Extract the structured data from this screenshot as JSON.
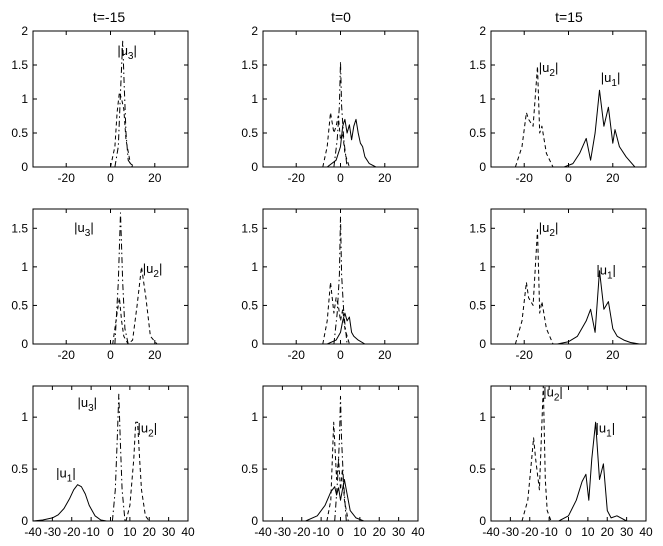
{
  "figure": {
    "column_titles": [
      "t=-15",
      "t=0",
      "t=15"
    ]
  },
  "chart_data": [
    {
      "type": "line",
      "row": 0,
      "col": 0,
      "title": "t=-15",
      "xlim": [
        -35,
        35
      ],
      "ylim": [
        0,
        2
      ],
      "xticks": [
        -20,
        0,
        20
      ],
      "yticks": [
        0,
        0.5,
        1,
        1.5,
        2
      ],
      "xtick_labels": [
        "-20",
        "0",
        "20"
      ],
      "ytick_labels": [
        "0",
        "0.5",
        "1",
        "1.5",
        "2"
      ],
      "series": [
        {
          "name": "|u1|",
          "style": "solid",
          "x": [
            -35,
            35
          ],
          "y": [
            0,
            0
          ]
        },
        {
          "name": "|u2|",
          "style": "dashed",
          "x": [
            0,
            2,
            3,
            4,
            5,
            6,
            7,
            9,
            11
          ],
          "y": [
            0,
            0.3,
            0.8,
            1.1,
            1.0,
            0.85,
            0.4,
            0.05,
            0
          ]
        },
        {
          "name": "|u3|",
          "style": "dashdot",
          "x": [
            2,
            3.5,
            4.5,
            5.5,
            6.2,
            7,
            8,
            10
          ],
          "y": [
            0,
            0.3,
            1.1,
            1.85,
            1.2,
            0.5,
            0.1,
            0
          ]
        }
      ],
      "annotations": [
        {
          "label": "|u",
          "sub": "3",
          "x": 7.5,
          "y": 1.65
        }
      ]
    },
    {
      "type": "line",
      "row": 0,
      "col": 1,
      "title": "t=0",
      "xlim": [
        -35,
        35
      ],
      "ylim": [
        0,
        2
      ],
      "xticks": [
        -20,
        0,
        20
      ],
      "yticks": [
        0,
        0.5,
        1,
        1.5,
        2
      ],
      "xtick_labels": [
        "-20",
        "0",
        "20"
      ],
      "ytick_labels": [
        "0",
        "0.5",
        "1",
        "1.5",
        "2"
      ],
      "series": [
        {
          "name": "|u1|",
          "style": "solid",
          "x": [
            -6,
            -2,
            0,
            1,
            2,
            3,
            4,
            5,
            6,
            7,
            8,
            9,
            10,
            11,
            13,
            16
          ],
          "y": [
            0,
            0.1,
            0.3,
            0.6,
            0.7,
            0.5,
            0.62,
            0.4,
            0.6,
            0.7,
            0.5,
            0.35,
            0.3,
            0.15,
            0.05,
            0
          ]
        },
        {
          "name": "|u2|",
          "style": "dashed",
          "x": [
            -8,
            -6,
            -4.5,
            -3,
            -2,
            -1,
            0,
            1,
            2,
            4
          ],
          "y": [
            0,
            0.3,
            0.8,
            0.5,
            0.6,
            0.75,
            0.4,
            0.5,
            0.2,
            0
          ]
        },
        {
          "name": "|u3|",
          "style": "dashdot",
          "x": [
            -3,
            -1.5,
            -0.5,
            0,
            0.5,
            1.5,
            3
          ],
          "y": [
            0,
            0.4,
            0.9,
            1.55,
            0.9,
            0.4,
            0
          ]
        }
      ],
      "annotations": []
    },
    {
      "type": "line",
      "row": 0,
      "col": 2,
      "title": "t=15",
      "xlim": [
        -35,
        35
      ],
      "ylim": [
        0,
        2
      ],
      "xticks": [
        -20,
        0,
        20
      ],
      "yticks": [
        0,
        0.5,
        1,
        1.5,
        2
      ],
      "xtick_labels": [
        "-20",
        "0",
        "20"
      ],
      "ytick_labels": [
        "0",
        "0.5",
        "1",
        "1.5",
        "2"
      ],
      "series": [
        {
          "name": "|u1|",
          "style": "solid",
          "x": [
            -2,
            2,
            5,
            8,
            10,
            12,
            14,
            16,
            18,
            20,
            21,
            23,
            26,
            30
          ],
          "y": [
            0,
            0.05,
            0.2,
            0.42,
            0.1,
            0.5,
            1.13,
            0.6,
            0.88,
            0.35,
            0.55,
            0.3,
            0.15,
            0
          ]
        },
        {
          "name": "|u2|",
          "style": "dashed",
          "x": [
            -24,
            -21,
            -19,
            -18,
            -16,
            -14,
            -13,
            -12,
            -10,
            -7
          ],
          "y": [
            0,
            0.3,
            0.8,
            0.7,
            0.6,
            1.48,
            0.5,
            0.6,
            0.2,
            0
          ]
        },
        {
          "name": "|u3|",
          "style": "dashdot",
          "x": [
            -35,
            35
          ],
          "y": [
            0,
            0
          ]
        }
      ],
      "annotations": [
        {
          "label": "|u",
          "sub": "2",
          "x": -9,
          "y": 1.4
        },
        {
          "label": "|u",
          "sub": "1",
          "x": 19,
          "y": 1.25
        }
      ]
    },
    {
      "type": "line",
      "row": 1,
      "col": 0,
      "title": "",
      "xlim": [
        -35,
        35
      ],
      "ylim": [
        0,
        1.75
      ],
      "xticks": [
        -20,
        0,
        20
      ],
      "yticks": [
        0,
        0.5,
        1,
        1.5
      ],
      "xtick_labels": [
        "-20",
        "0",
        "20"
      ],
      "ytick_labels": [
        "0",
        "0.5",
        "1",
        "1.5"
      ],
      "series": [
        {
          "name": "|u1|",
          "style": "solid",
          "x": [
            -35,
            35
          ],
          "y": [
            0,
            0
          ]
        },
        {
          "name": "|u2|",
          "style": "dashed",
          "x": [
            1,
            3,
            4,
            5,
            6,
            8,
            10,
            12,
            14,
            16,
            18,
            21
          ],
          "y": [
            0,
            0.4,
            0.6,
            0.3,
            0.1,
            0,
            0.05,
            0.5,
            1.0,
            0.6,
            0.1,
            0
          ]
        },
        {
          "name": "|u3|",
          "style": "dashdot",
          "x": [
            2,
            3.5,
            4.5,
            5.5,
            6.5,
            8
          ],
          "y": [
            0,
            0.8,
            1.7,
            0.8,
            0.2,
            0
          ]
        }
      ],
      "annotations": [
        {
          "label": "|u",
          "sub": "3",
          "x": -12,
          "y": 1.45
        },
        {
          "label": "|u",
          "sub": "2",
          "x": 19,
          "y": 0.92
        }
      ]
    },
    {
      "type": "line",
      "row": 1,
      "col": 1,
      "title": "",
      "xlim": [
        -35,
        35
      ],
      "ylim": [
        0,
        1.75
      ],
      "xticks": [
        -20,
        0,
        20
      ],
      "yticks": [
        0,
        0.5,
        1,
        1.5
      ],
      "xtick_labels": [
        "-20",
        "0",
        "20"
      ],
      "ytick_labels": [
        "0",
        "0.5",
        "1",
        "1.5"
      ],
      "series": [
        {
          "name": "|u1|",
          "style": "solid",
          "x": [
            -6,
            -2,
            0,
            1,
            2,
            3,
            4,
            5,
            6,
            8,
            11
          ],
          "y": [
            0,
            0.05,
            0.15,
            0.3,
            0.4,
            0.3,
            0.35,
            0.15,
            0.1,
            0.05,
            0
          ]
        },
        {
          "name": "|u2|",
          "style": "dashed",
          "x": [
            -8,
            -6,
            -4.5,
            -3,
            -2,
            -1,
            0,
            1,
            2,
            4
          ],
          "y": [
            0,
            0.3,
            0.8,
            0.4,
            0.6,
            0.5,
            0.3,
            0.45,
            0.2,
            0
          ]
        },
        {
          "name": "|u3|",
          "style": "dashdot",
          "x": [
            -3,
            -1.5,
            -0.5,
            0,
            0.5,
            1.5,
            3
          ],
          "y": [
            0,
            0.4,
            0.9,
            1.65,
            0.9,
            0.4,
            0
          ]
        }
      ],
      "annotations": []
    },
    {
      "type": "line",
      "row": 1,
      "col": 2,
      "title": "",
      "xlim": [
        -35,
        35
      ],
      "ylim": [
        0,
        1.75
      ],
      "xticks": [
        -20,
        0,
        20
      ],
      "yticks": [
        0,
        0.5,
        1,
        1.5
      ],
      "xtick_labels": [
        "-20",
        "0",
        "20"
      ],
      "ytick_labels": [
        "0",
        "0.5",
        "1",
        "1.5"
      ],
      "series": [
        {
          "name": "|u1|",
          "style": "solid",
          "x": [
            -5,
            0,
            4,
            8,
            10,
            12,
            14,
            16,
            18,
            20,
            22,
            25,
            28,
            32
          ],
          "y": [
            0,
            0.03,
            0.1,
            0.3,
            0.45,
            0.15,
            0.95,
            0.45,
            0.55,
            0.2,
            0.1,
            0.05,
            0.02,
            0
          ]
        },
        {
          "name": "|u2|",
          "style": "dashed",
          "x": [
            -24,
            -21,
            -19,
            -18,
            -16,
            -14,
            -13,
            -12,
            -10,
            -7
          ],
          "y": [
            0,
            0.3,
            0.8,
            0.6,
            0.5,
            1.48,
            0.4,
            0.55,
            0.2,
            0
          ]
        },
        {
          "name": "|u3|",
          "style": "dashdot",
          "x": [
            -35,
            35
          ],
          "y": [
            0,
            0
          ]
        }
      ],
      "annotations": [
        {
          "label": "|u",
          "sub": "2",
          "x": -9,
          "y": 1.45
        },
        {
          "label": "|u",
          "sub": "1",
          "x": 17,
          "y": 0.9
        }
      ]
    },
    {
      "type": "line",
      "row": 2,
      "col": 0,
      "title": "",
      "xlim": [
        -40,
        40
      ],
      "ylim": [
        0,
        1.3
      ],
      "xticks": [
        -40,
        -30,
        -20,
        -10,
        0,
        10,
        20,
        30,
        40
      ],
      "yticks": [
        0,
        0.5,
        1
      ],
      "xtick_labels": [
        "-40",
        "-30",
        "-20",
        "-10",
        "0",
        "10",
        "20",
        "30",
        "40"
      ],
      "ytick_labels": [
        "0",
        "0.5",
        "1"
      ],
      "series": [
        {
          "name": "|u1|",
          "style": "solid",
          "x": [
            -40,
            -35,
            -30,
            -27,
            -24,
            -21,
            -19,
            -17,
            -15,
            -13,
            -11,
            -8,
            -5,
            -2,
            2
          ],
          "y": [
            0,
            0.01,
            0.03,
            0.06,
            0.12,
            0.22,
            0.3,
            0.35,
            0.33,
            0.26,
            0.15,
            0.05,
            0.01,
            0,
            0
          ]
        },
        {
          "name": "|u2|",
          "style": "dashed",
          "x": [
            8,
            10,
            12,
            13,
            14,
            15,
            16,
            18,
            20
          ],
          "y": [
            0,
            0.15,
            0.6,
            0.95,
            0.95,
            0.6,
            0.3,
            0.05,
            0
          ]
        },
        {
          "name": "|u3|",
          "style": "dashdot",
          "x": [
            1,
            2.5,
            3.5,
            4.3,
            5,
            6,
            7.5
          ],
          "y": [
            0,
            0.3,
            0.8,
            1.22,
            0.8,
            0.3,
            0
          ]
        }
      ],
      "annotations": [
        {
          "label": "|u",
          "sub": "3",
          "x": -12,
          "y": 1.1
        },
        {
          "label": "|u",
          "sub": "2",
          "x": 19,
          "y": 0.85
        },
        {
          "label": "|u",
          "sub": "1",
          "x": -23,
          "y": 0.42
        }
      ]
    },
    {
      "type": "line",
      "row": 2,
      "col": 1,
      "title": "",
      "xlim": [
        -40,
        40
      ],
      "ylim": [
        0,
        1.3
      ],
      "xticks": [
        -40,
        -30,
        -20,
        -10,
        0,
        10,
        20,
        30,
        40
      ],
      "yticks": [
        0,
        0.5,
        1
      ],
      "xtick_labels": [
        "-40",
        "-30",
        "-20",
        "-10",
        "0",
        "10",
        "20",
        "30",
        "40"
      ],
      "ytick_labels": [
        "0",
        "0.5",
        "1"
      ],
      "series": [
        {
          "name": "|u1|",
          "style": "solid",
          "x": [
            -18,
            -12,
            -8,
            -5,
            -3,
            -2,
            -1,
            0,
            1,
            2,
            3,
            5,
            8,
            12
          ],
          "y": [
            0,
            0.05,
            0.15,
            0.28,
            0.33,
            0.25,
            0.32,
            0.2,
            0.3,
            0.4,
            0.3,
            0.1,
            0.03,
            0
          ]
        },
        {
          "name": "|u2|",
          "style": "dashed",
          "x": [
            -7,
            -5,
            -3.5,
            -2,
            -1,
            0,
            1,
            2,
            4
          ],
          "y": [
            0,
            0.2,
            0.95,
            0.4,
            0.6,
            0.3,
            0.5,
            0.2,
            0
          ]
        },
        {
          "name": "|u3|",
          "style": "dashdot",
          "x": [
            -3,
            -1.5,
            -0.5,
            0,
            0.5,
            1.5,
            3
          ],
          "y": [
            0,
            0.4,
            0.8,
            1.2,
            0.8,
            0.4,
            0
          ]
        }
      ],
      "annotations": []
    },
    {
      "type": "line",
      "row": 2,
      "col": 2,
      "title": "",
      "xlim": [
        -40,
        40
      ],
      "ylim": [
        0,
        1.3
      ],
      "xticks": [
        -40,
        -30,
        -20,
        -10,
        0,
        10,
        20,
        30,
        40
      ],
      "yticks": [
        0,
        0.5,
        1
      ],
      "xtick_labels": [
        "-40",
        "-30",
        "-20",
        "-10",
        "0",
        "10",
        "20",
        "30",
        "40"
      ],
      "ytick_labels": [
        "0",
        "0.5",
        "1"
      ],
      "series": [
        {
          "name": "|u1|",
          "style": "solid",
          "x": [
            -5,
            0,
            4,
            7,
            9,
            10.5,
            12,
            14,
            16,
            18,
            20,
            22,
            25,
            30
          ],
          "y": [
            0,
            0.05,
            0.2,
            0.38,
            0.45,
            0.2,
            0.6,
            0.95,
            0.4,
            0.55,
            0.1,
            0.03,
            0.05,
            0
          ]
        },
        {
          "name": "|u2|",
          "style": "dashed",
          "x": [
            -24,
            -21,
            -19,
            -18,
            -17,
            -15,
            -13,
            -12,
            -11,
            -9
          ],
          "y": [
            0,
            0.2,
            0.6,
            0.8,
            0.6,
            0.3,
            1.3,
            0.4,
            0.1,
            0
          ]
        },
        {
          "name": "|u3|",
          "style": "dashdot",
          "x": [
            -40,
            40
          ],
          "y": [
            0,
            0
          ]
        }
      ],
      "annotations": [
        {
          "label": "|u",
          "sub": "2",
          "x": -8,
          "y": 1.2
        },
        {
          "label": "|u",
          "sub": "1",
          "x": 19,
          "y": 0.85
        }
      ]
    }
  ]
}
